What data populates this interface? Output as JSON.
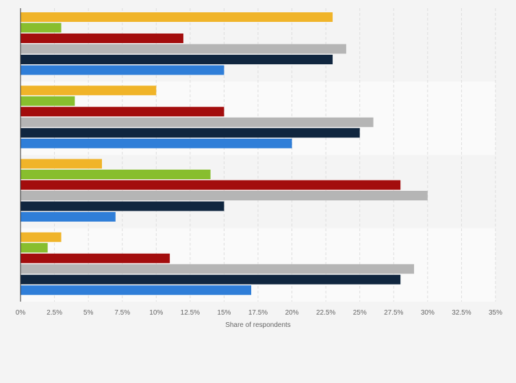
{
  "chart_data": {
    "type": "bar",
    "orientation": "horizontal",
    "categories": [
      "",
      "",
      "",
      ""
    ],
    "series": [
      {
        "values": [
          23,
          10,
          6,
          3
        ]
      },
      {
        "values": [
          3,
          4,
          14,
          2
        ]
      },
      {
        "values": [
          12,
          15,
          28,
          11
        ]
      },
      {
        "values": [
          24,
          26,
          30,
          29
        ]
      },
      {
        "values": [
          23,
          25,
          15,
          28
        ]
      },
      {
        "values": [
          15,
          20,
          7,
          17
        ]
      }
    ],
    "colors": [
      "#f0b429",
      "#88be2e",
      "#a30d0d",
      "#b5b5b5",
      "#10263f",
      "#2f7ed8"
    ],
    "xlim": [
      0,
      35
    ],
    "xticks": [
      0,
      2.5,
      5,
      7.5,
      10,
      12.5,
      15,
      17.5,
      20,
      22.5,
      25,
      27.5,
      30,
      32.5,
      35
    ],
    "xtick_labels": [
      "0%",
      "2.5%",
      "5%",
      "7.5%",
      "10%",
      "12.5%",
      "15%",
      "17.5%",
      "20%",
      "22.5%",
      "25%",
      "27.5%",
      "30%",
      "32.5%",
      "35%"
    ],
    "xlabel": "Share of respondents",
    "ylabel": "",
    "title": "",
    "grid": true,
    "legend": "none"
  }
}
